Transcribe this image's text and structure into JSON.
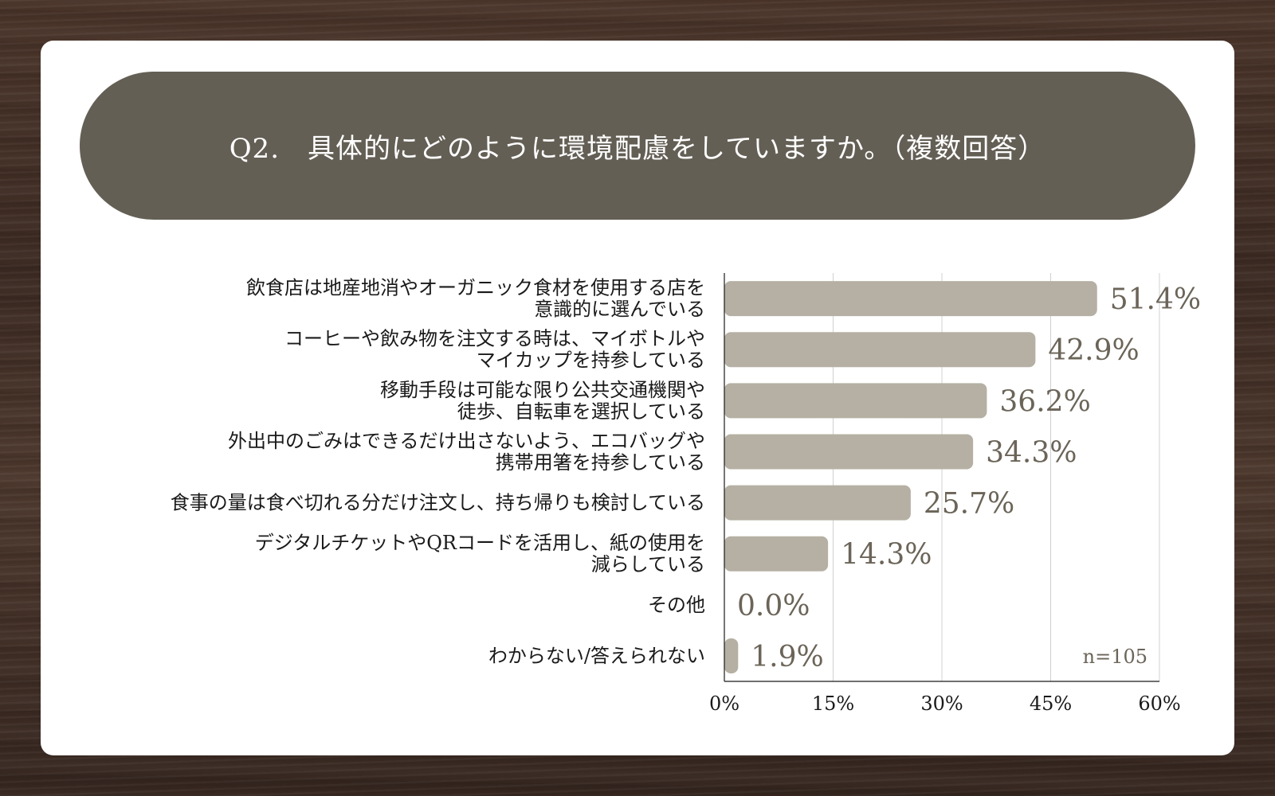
{
  "title": "Q2.　具体的にどのように環境配慮をしていますか。（複数回答）",
  "chart_data": {
    "type": "bar",
    "orientation": "horizontal",
    "categories": [
      [
        "飲食店は地産地消やオーガニック食材を使用する店を",
        "意識的に選んでいる"
      ],
      [
        "コーヒーや飲み物を注文する時は、マイボトルや",
        "マイカップを持参している"
      ],
      [
        "移動手段は可能な限り公共交通機関や",
        "徒歩、自転車を選択している"
      ],
      [
        "外出中のごみはできるだけ出さないよう、エコバッグや",
        "携帯用箸を持参している"
      ],
      [
        "食事の量は食べ切れる分だけ注文し、持ち帰りも検討している"
      ],
      [
        "デジタルチケットやQRコードを活用し、紙の使用を",
        "減らしている"
      ],
      [
        "その他"
      ],
      [
        "わからない/答えられない"
      ]
    ],
    "values": [
      51.4,
      42.9,
      36.2,
      34.3,
      25.7,
      14.3,
      0.0,
      1.9
    ],
    "value_labels": [
      "51.4%",
      "42.9%",
      "36.2%",
      "34.3%",
      "25.7%",
      "14.3%",
      "0.0%",
      "1.9%"
    ],
    "xlim": [
      0,
      60
    ],
    "x_ticks": [
      0,
      15,
      30,
      45,
      60
    ],
    "x_tick_labels": [
      "0%",
      "15%",
      "30%",
      "45%",
      "60%"
    ],
    "grid": true,
    "bar_color": "#b5b0a3",
    "value_label_color": "#6b6458",
    "note": "n=105"
  },
  "colors": {
    "title_bg": "#645f55",
    "card_bg": "#ffffff"
  }
}
